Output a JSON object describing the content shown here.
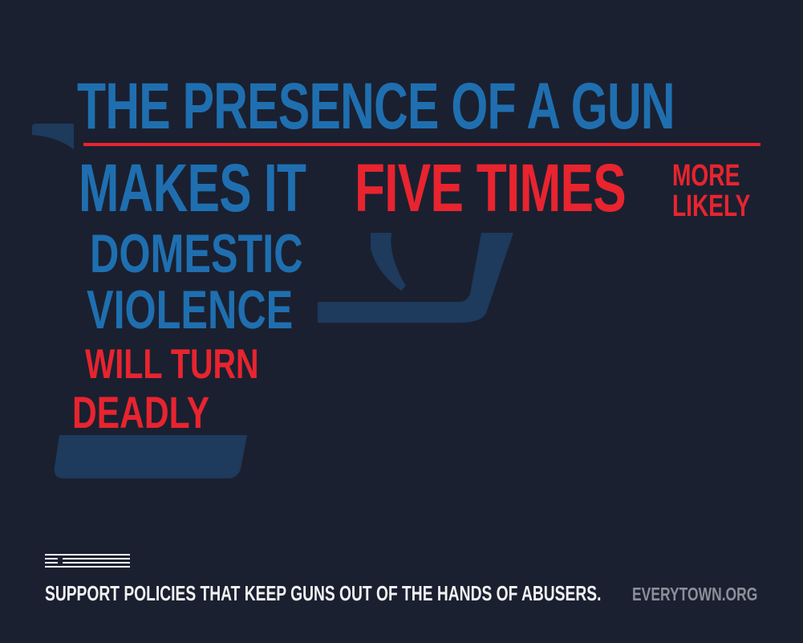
{
  "colors": {
    "background": "#1a2030",
    "blue": "#1f6fb0",
    "red": "#e8242f",
    "gun_silhouette": "#1e3a5c",
    "footer_text": "#f2f2f2",
    "site_text": "#8a8f99"
  },
  "headline": {
    "line1": "THE PRESENCE OF A GUN",
    "line2_blue": "MAKES IT",
    "line2_red": "FIVE TIMES",
    "more": "MORE",
    "likely": "LIKELY",
    "line3": "DOMESTIC",
    "line4": "VIOLENCE",
    "line5": "WILL TURN",
    "line6": "DEADLY"
  },
  "footer": {
    "icon": "menu-lines-icon",
    "tagline": "SUPPORT POLICIES THAT KEEP GUNS OUT OF THE HANDS OF ABUSERS.",
    "site": "EVERYTOWN.ORG"
  }
}
